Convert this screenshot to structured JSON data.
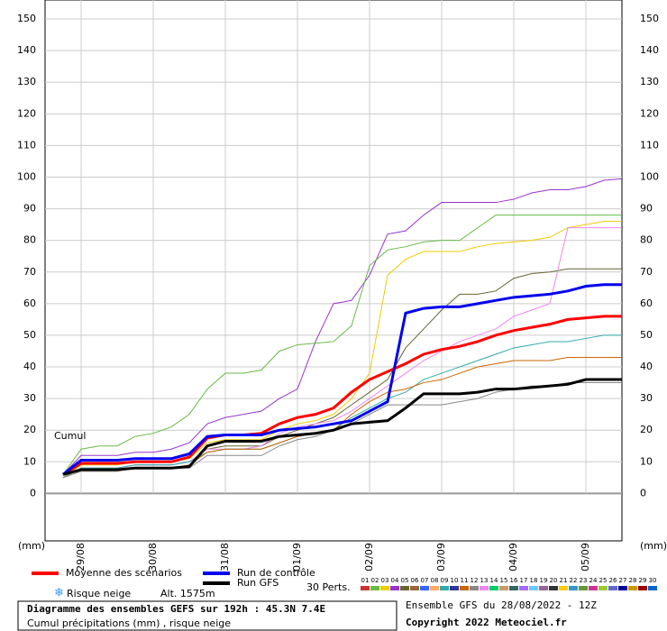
{
  "chart_data": {
    "type": "line",
    "title": "Diagramme des ensembles GEFS sur 192h : 45.3N 7.4E",
    "subtitle": "Cumul précipitations (mm) , risque neige",
    "run_label": "Ensemble GFS du 28/08/2022 - 12Z",
    "copyright": "Copyright 2022 Meteociel.fr",
    "y_label": "Cumul",
    "unit_left": "(mm)",
    "unit_right": "(mm)",
    "snow_label": "Risque neige",
    "altitude": "Alt. 1575m",
    "perts_label": "30 Perts.",
    "categories": [
      null,
      "29/08",
      null,
      null,
      null,
      "30/08",
      null,
      null,
      null,
      "31/08",
      null,
      null,
      null,
      "01/09",
      null,
      null,
      null,
      "02/09",
      null,
      null,
      null,
      "03/09",
      null,
      null,
      null,
      "04/09",
      null,
      null,
      null,
      "05/09",
      null,
      null
    ],
    "ylim": [
      -15,
      156
    ],
    "yticks": [
      0,
      10,
      20,
      30,
      40,
      50,
      60,
      70,
      80,
      90,
      100,
      110,
      120,
      130,
      140,
      150
    ],
    "grid": true,
    "series": [
      {
        "color": "#9933cc",
        "values": [
          6,
          12,
          12,
          12,
          13,
          13,
          14,
          16,
          22,
          24,
          25,
          26,
          30,
          33,
          48,
          60,
          61,
          69,
          82,
          83,
          88,
          92,
          92,
          92,
          92,
          93,
          95,
          96,
          96,
          97,
          99,
          99.5
        ]
      },
      {
        "color": "#66bb44",
        "values": [
          6,
          14,
          15,
          15,
          18,
          19,
          21,
          25,
          33,
          38,
          38,
          39,
          45,
          47,
          47.5,
          48,
          53,
          72,
          77,
          78,
          79.5,
          80,
          80,
          84,
          88,
          88,
          88,
          88,
          88,
          88,
          88,
          88
        ]
      },
      {
        "color": "#eecc00",
        "values": [
          5,
          9,
          9,
          9,
          10,
          10,
          10,
          11,
          16,
          17,
          17,
          17,
          20,
          22,
          23,
          25,
          30,
          38,
          69,
          74,
          76.5,
          76.5,
          76.5,
          78,
          79,
          79.5,
          80,
          81,
          84,
          85,
          86,
          86
        ]
      },
      {
        "color": "#666633",
        "values": [
          5,
          8,
          8,
          8,
          9,
          9,
          9,
          10,
          14,
          15,
          15,
          15,
          18,
          20,
          22,
          24,
          28,
          32,
          36,
          46,
          52,
          58,
          63,
          63,
          64,
          68,
          69.5,
          70,
          71,
          71,
          71,
          71
        ]
      },
      {
        "color": "#ee88ee",
        "values": [
          5,
          8,
          8,
          8,
          9,
          9,
          9,
          10,
          14,
          14,
          14,
          15,
          19,
          21,
          22,
          23,
          26,
          30,
          34,
          38,
          42,
          45,
          48,
          50,
          52,
          56,
          58,
          60,
          84,
          84,
          84,
          84
        ]
      },
      {
        "color": "#33aaaa",
        "values": [
          5,
          8,
          8,
          8,
          9,
          9,
          9,
          10,
          13,
          14,
          14,
          14,
          16,
          18,
          19,
          20,
          24,
          27,
          30,
          32,
          36,
          38,
          40,
          42,
          44,
          46,
          47,
          48,
          48,
          49,
          50,
          50
        ]
      },
      {
        "color": "#cc6600",
        "values": [
          5,
          7,
          7,
          7,
          8,
          8,
          8,
          9,
          13,
          14,
          14,
          14,
          16,
          18,
          19,
          20,
          25,
          29,
          32,
          33,
          35,
          36,
          38,
          40,
          41,
          42,
          42,
          42,
          43,
          43,
          43,
          43
        ]
      },
      {
        "color": "#888888",
        "values": [
          5,
          7,
          7,
          7,
          8,
          8,
          8,
          8,
          12,
          12,
          12,
          12,
          15,
          17,
          18,
          20,
          22,
          25,
          28,
          28,
          28,
          28,
          29,
          30,
          32,
          33,
          34,
          34,
          35,
          35,
          35,
          35
        ]
      },
      {
        "name": "Moyenne des scénarios",
        "color": "#ff0000",
        "width": 3,
        "values": [
          6,
          9.5,
          9.5,
          9.5,
          10,
          10,
          10,
          11.5,
          17.5,
          18.5,
          18.5,
          19,
          22,
          24,
          25,
          27,
          32,
          36,
          38.5,
          41,
          44,
          45.5,
          46.5,
          48,
          50,
          51.5,
          52.5,
          53.5,
          55,
          55.5,
          56,
          56
        ]
      },
      {
        "name": "Run de contrôle",
        "color": "#0000ee",
        "width": 3,
        "values": [
          6,
          10.5,
          10.5,
          10.5,
          11,
          11,
          11,
          12.5,
          18,
          18.5,
          18.5,
          18.5,
          20,
          20.5,
          21,
          22,
          23,
          26,
          29,
          57,
          58.5,
          59,
          59,
          60,
          61,
          62,
          62.5,
          63,
          64,
          65.5,
          66,
          66
        ]
      },
      {
        "name": "Run GFS",
        "color": "#000000",
        "width": 3,
        "values": [
          6,
          7.5,
          7.5,
          7.5,
          8,
          8,
          8,
          8.5,
          15,
          16.5,
          16.5,
          16.5,
          18,
          18.5,
          19,
          20,
          22,
          22.5,
          23,
          27,
          31.5,
          31.5,
          31.5,
          32,
          33,
          33,
          33.5,
          34,
          34.5,
          36,
          36,
          36
        ]
      }
    ],
    "perturbations": [
      {
        "label": "01",
        "color": "#cc3333"
      },
      {
        "label": "02",
        "color": "#66bb44"
      },
      {
        "label": "03",
        "color": "#eecc00"
      },
      {
        "label": "04",
        "color": "#9933cc"
      },
      {
        "label": "05",
        "color": "#666633"
      },
      {
        "label": "06",
        "color": "#996633"
      },
      {
        "label": "07",
        "color": "#3366ff"
      },
      {
        "label": "08",
        "color": "#ffaa66"
      },
      {
        "label": "09",
        "color": "#33aaaa"
      },
      {
        "label": "10",
        "color": "#333399"
      },
      {
        "label": "11",
        "color": "#cc6600"
      },
      {
        "label": "12",
        "color": "#888888"
      },
      {
        "label": "13",
        "color": "#ee88ee"
      },
      {
        "label": "14",
        "color": "#00cc66"
      },
      {
        "label": "15",
        "color": "#cc9966"
      },
      {
        "label": "16",
        "color": "#336666"
      },
      {
        "label": "17",
        "color": "#aa66ff"
      },
      {
        "label": "18",
        "color": "#66ccff"
      },
      {
        "label": "19",
        "color": "#996699"
      },
      {
        "label": "20",
        "color": "#333333"
      },
      {
        "label": "21",
        "color": "#ffcc00"
      },
      {
        "label": "22",
        "color": "#3399cc"
      },
      {
        "label": "23",
        "color": "#669933"
      },
      {
        "label": "24",
        "color": "#cc3399"
      },
      {
        "label": "25",
        "color": "#99cc33"
      },
      {
        "label": "26",
        "color": "#6666cc"
      },
      {
        "label": "27",
        "color": "#000099"
      },
      {
        "label": "28",
        "color": "#cc9900"
      },
      {
        "label": "29",
        "color": "#990000"
      },
      {
        "label": "30",
        "color": "#0066cc"
      }
    ]
  }
}
